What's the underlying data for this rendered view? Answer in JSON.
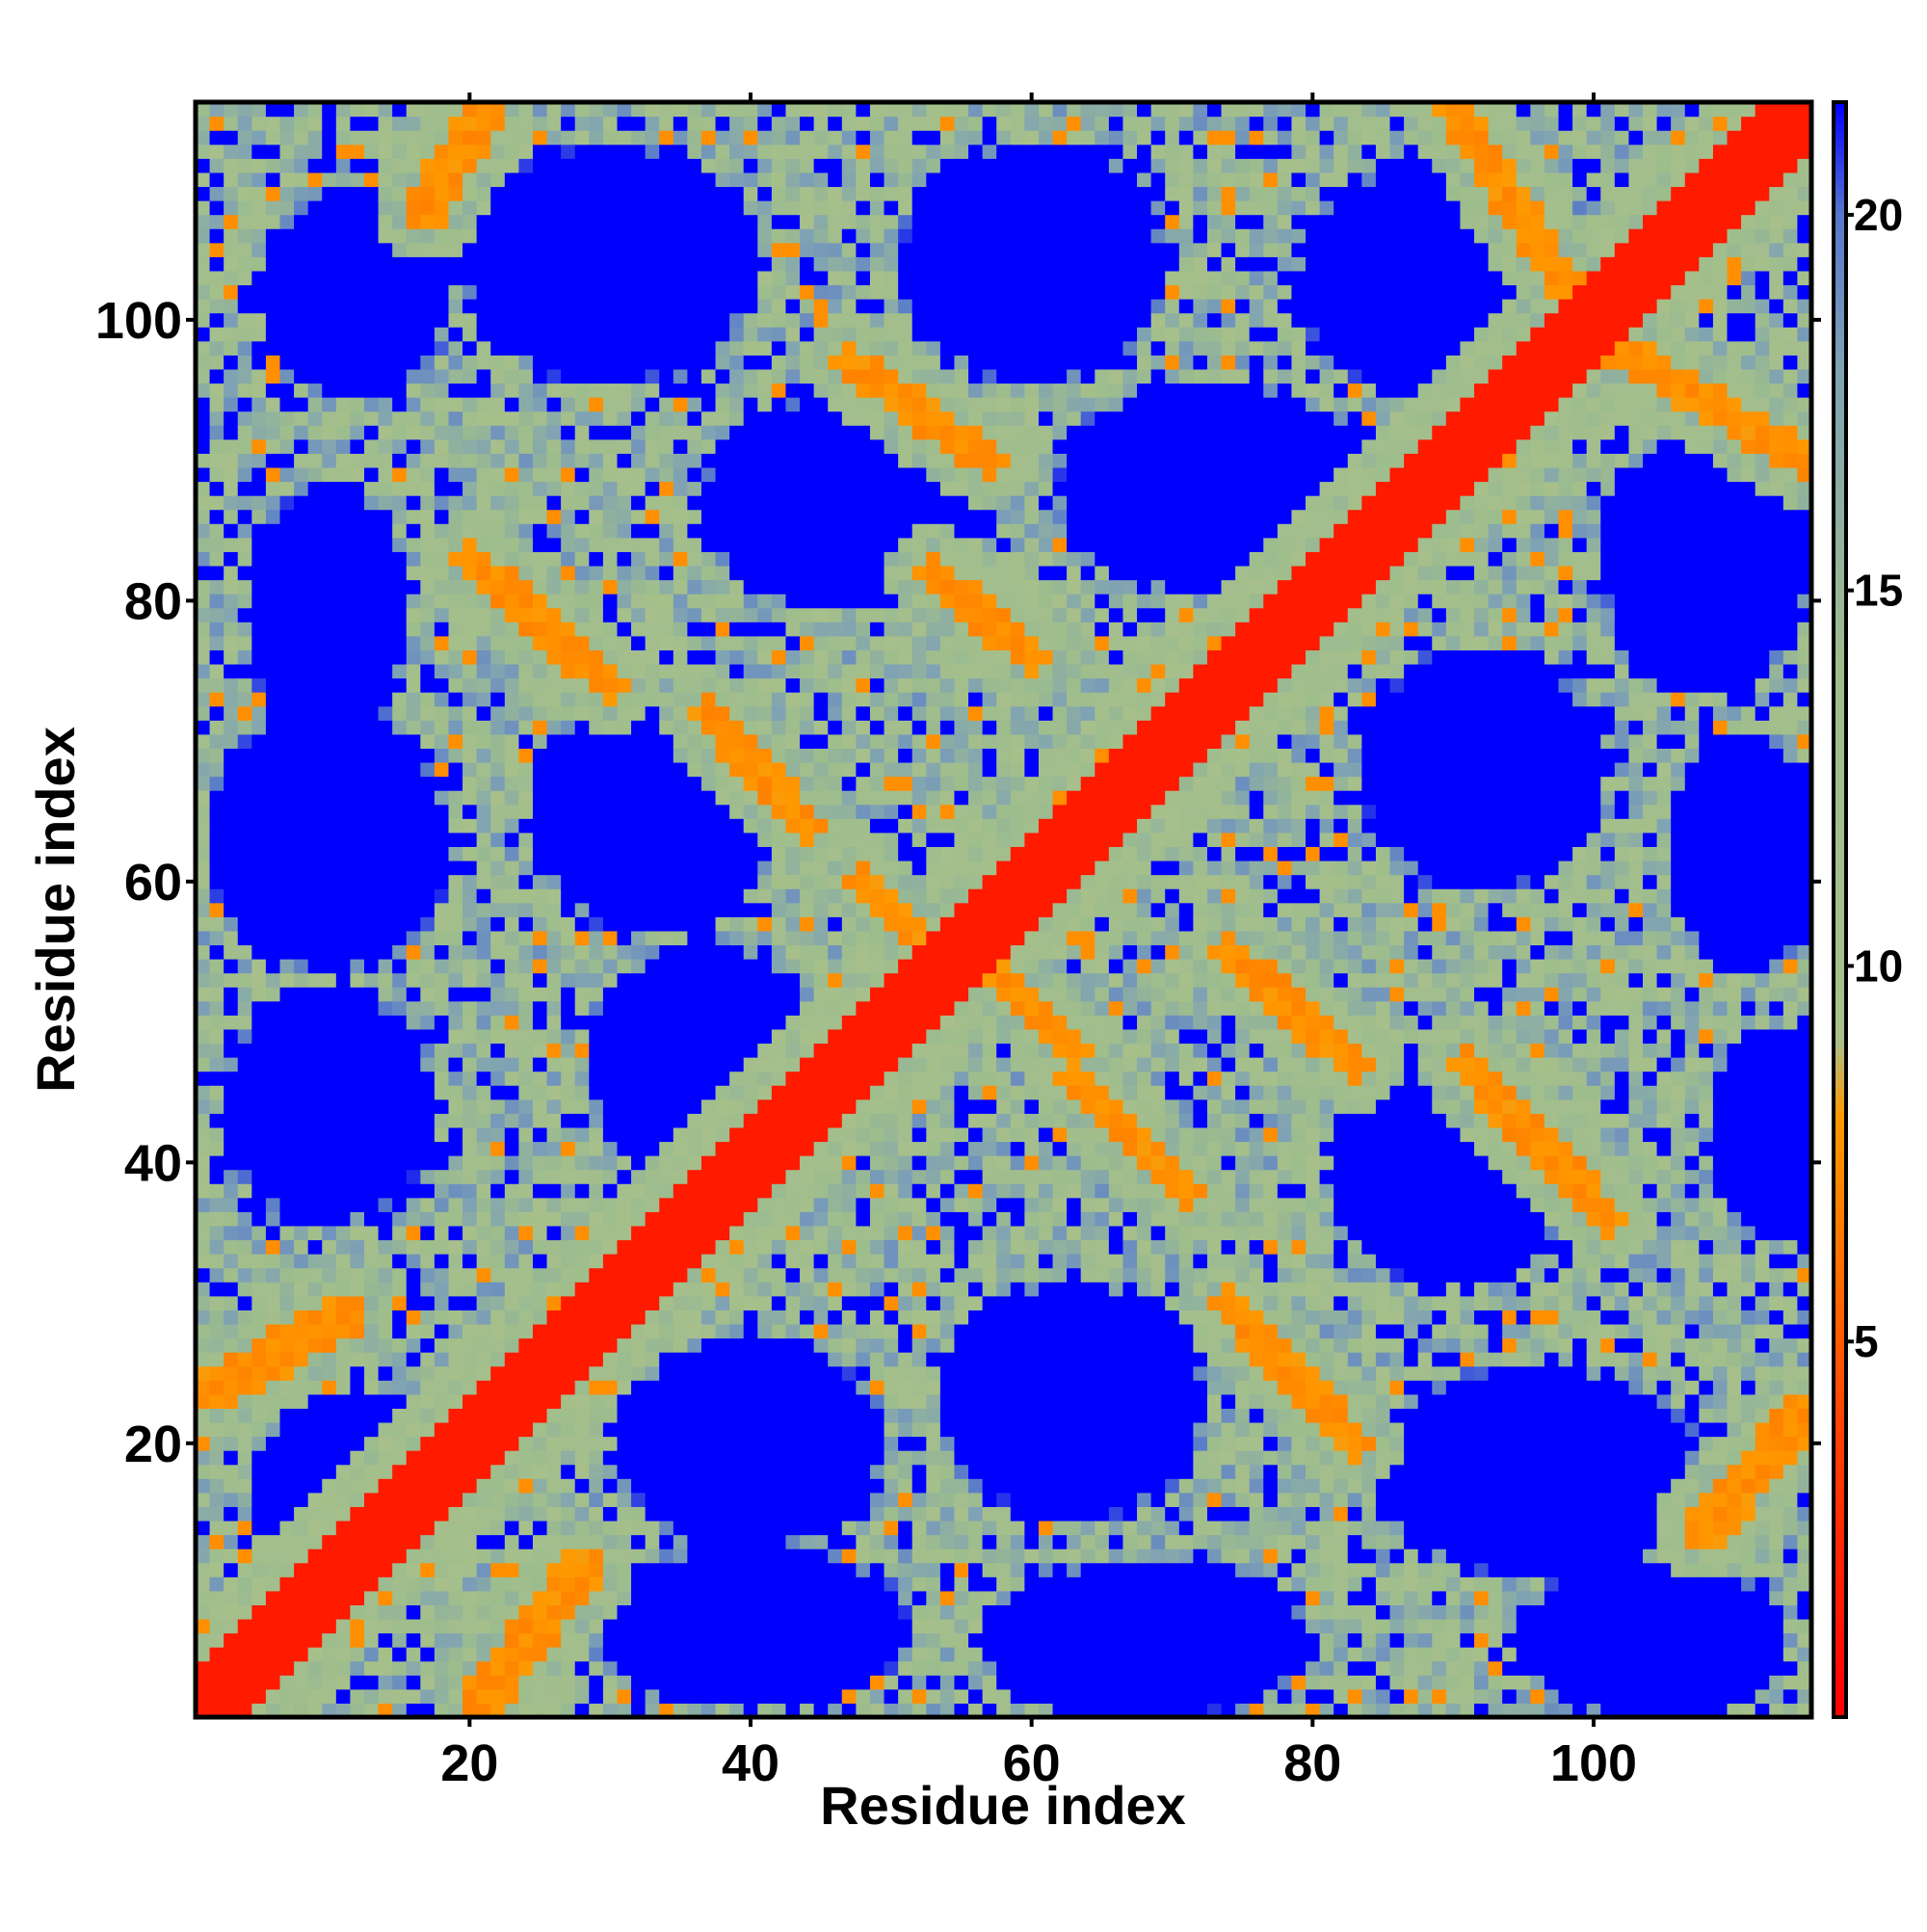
{
  "chart_data": {
    "type": "heatmap",
    "title": "",
    "xlabel": "Residue index",
    "ylabel": "Residue index",
    "x_range": [
      1,
      115
    ],
    "y_range": [
      1,
      115
    ],
    "x_ticks": [
      20,
      40,
      60,
      80,
      100
    ],
    "y_ticks": [
      20,
      40,
      60,
      80,
      100
    ],
    "colorbar": {
      "range": [
        0,
        21.5
      ],
      "ticks": [
        5,
        10,
        15,
        20
      ],
      "stops": [
        {
          "value": 0,
          "color": "#ff0000"
        },
        {
          "value": 4,
          "color": "#ff4500"
        },
        {
          "value": 8,
          "color": "#ff9900"
        },
        {
          "value": 9,
          "color": "#a9c08a"
        },
        {
          "value": 14,
          "color": "#9ebd8d"
        },
        {
          "value": 18,
          "color": "#7fa2b4"
        },
        {
          "value": 20,
          "color": "#5577cc"
        },
        {
          "value": 21.5,
          "color": "#0000ff"
        }
      ]
    },
    "background_color": "#0000ff",
    "main_diagonal": {
      "from": [
        1,
        1
      ],
      "to": [
        115,
        115
      ],
      "half_width": 2.2,
      "value": 1.5
    },
    "contact_bands": [
      {
        "from": [
          47,
          97
        ],
        "to": [
          57,
          90
        ],
        "value": 7.5,
        "half_width": 1.3
      },
      {
        "from": [
          20,
          83
        ],
        "to": [
          30,
          74
        ],
        "value": 7.5,
        "half_width": 1.3
      },
      {
        "from": [
          37,
          72
        ],
        "to": [
          44,
          64
        ],
        "value": 7.5,
        "half_width": 1.3
      },
      {
        "from": [
          48,
          60
        ],
        "to": [
          54,
          54
        ],
        "value": 7.5,
        "half_width": 1.3
      },
      {
        "from": [
          53,
          82
        ],
        "to": [
          60,
          76
        ],
        "value": 7.5,
        "half_width": 1.3
      },
      {
        "from": [
          56,
          55
        ],
        "to": [
          63,
          48
        ],
        "value": 7.5,
        "half_width": 1.3
      },
      {
        "from": [
          63,
          46
        ],
        "to": [
          71,
          38
        ],
        "value": 7.5,
        "half_width": 1.3
      },
      {
        "from": [
          74,
          55
        ],
        "to": [
          83,
          47
        ],
        "value": 7.5,
        "half_width": 1.3
      },
      {
        "from": [
          91,
          47
        ],
        "to": [
          101,
          36
        ],
        "value": 7.5,
        "half_width": 1.3
      },
      {
        "from": [
          74,
          30
        ],
        "to": [
          83,
          20
        ],
        "value": 7.5,
        "half_width": 1.3
      },
      {
        "from": [
          90,
          115
        ],
        "to": [
          99,
          101
        ],
        "value": 7.5,
        "half_width": 1.3
      },
      {
        "from": [
          100,
          99
        ],
        "to": [
          115,
          90
        ],
        "value": 7.5,
        "half_width": 1.3
      },
      {
        "from": [
          17,
          108
        ],
        "to": [
          21,
          115
        ],
        "value": 7.5,
        "half_width": 1.6
      },
      {
        "from": [
          2,
          24
        ],
        "to": [
          11,
          29
        ],
        "value": 7.5,
        "half_width": 1.6
      },
      {
        "from": [
          21,
          2
        ],
        "to": [
          28,
          11
        ],
        "value": 7.5,
        "half_width": 1.6
      },
      {
        "from": [
          108,
          14
        ],
        "to": [
          115,
          22
        ],
        "value": 7.5,
        "half_width": 1.6
      }
    ],
    "blue_regions": [
      {
        "center": [
          12,
          102
        ],
        "radius": [
          7,
          8
        ]
      },
      {
        "center": [
          30,
          104
        ],
        "radius": [
          11,
          9
        ]
      },
      {
        "center": [
          60,
          104
        ],
        "radius": [
          10,
          9
        ]
      },
      {
        "center": [
          90,
          103
        ],
        "radius": [
          12,
          9
        ]
      },
      {
        "center": [
          10,
          79
        ],
        "radius": [
          6,
          10
        ]
      },
      {
        "center": [
          47,
          87
        ],
        "radius": [
          11,
          8
        ]
      },
      {
        "center": [
          73,
          88
        ],
        "radius": [
          12,
          8
        ]
      },
      {
        "center": [
          108,
          83
        ],
        "radius": [
          8,
          10
        ]
      },
      {
        "center": [
          10,
          63
        ],
        "radius": [
          9,
          10
        ]
      },
      {
        "center": [
          33,
          65
        ],
        "radius": [
          9,
          9
        ]
      },
      {
        "center": [
          92,
          68
        ],
        "radius": [
          9,
          9
        ]
      },
      {
        "center": [
          111,
          62
        ],
        "radius": [
          6,
          9
        ]
      },
      {
        "center": [
          10,
          44
        ],
        "radius": [
          8,
          9
        ]
      },
      {
        "center": [
          37,
          47
        ],
        "radius": [
          9,
          9
        ]
      },
      {
        "center": [
          90,
          40
        ],
        "radius": [
          9,
          9
        ]
      },
      {
        "center": [
          113,
          42
        ],
        "radius": [
          5,
          8
        ]
      },
      {
        "center": [
          12,
          17
        ],
        "radius": [
          8,
          7
        ]
      },
      {
        "center": [
          40,
          20
        ],
        "radius": [
          10,
          8
        ]
      },
      {
        "center": [
          63,
          23
        ],
        "radius": [
          10,
          9
        ]
      },
      {
        "center": [
          96,
          18
        ],
        "radius": [
          12,
          8
        ]
      },
      {
        "center": [
          40,
          7
        ],
        "radius": [
          12,
          6
        ]
      },
      {
        "center": [
          68,
          6
        ],
        "radius": [
          12,
          6
        ]
      },
      {
        "center": [
          104,
          6
        ],
        "radius": [
          10,
          6
        ]
      }
    ]
  }
}
